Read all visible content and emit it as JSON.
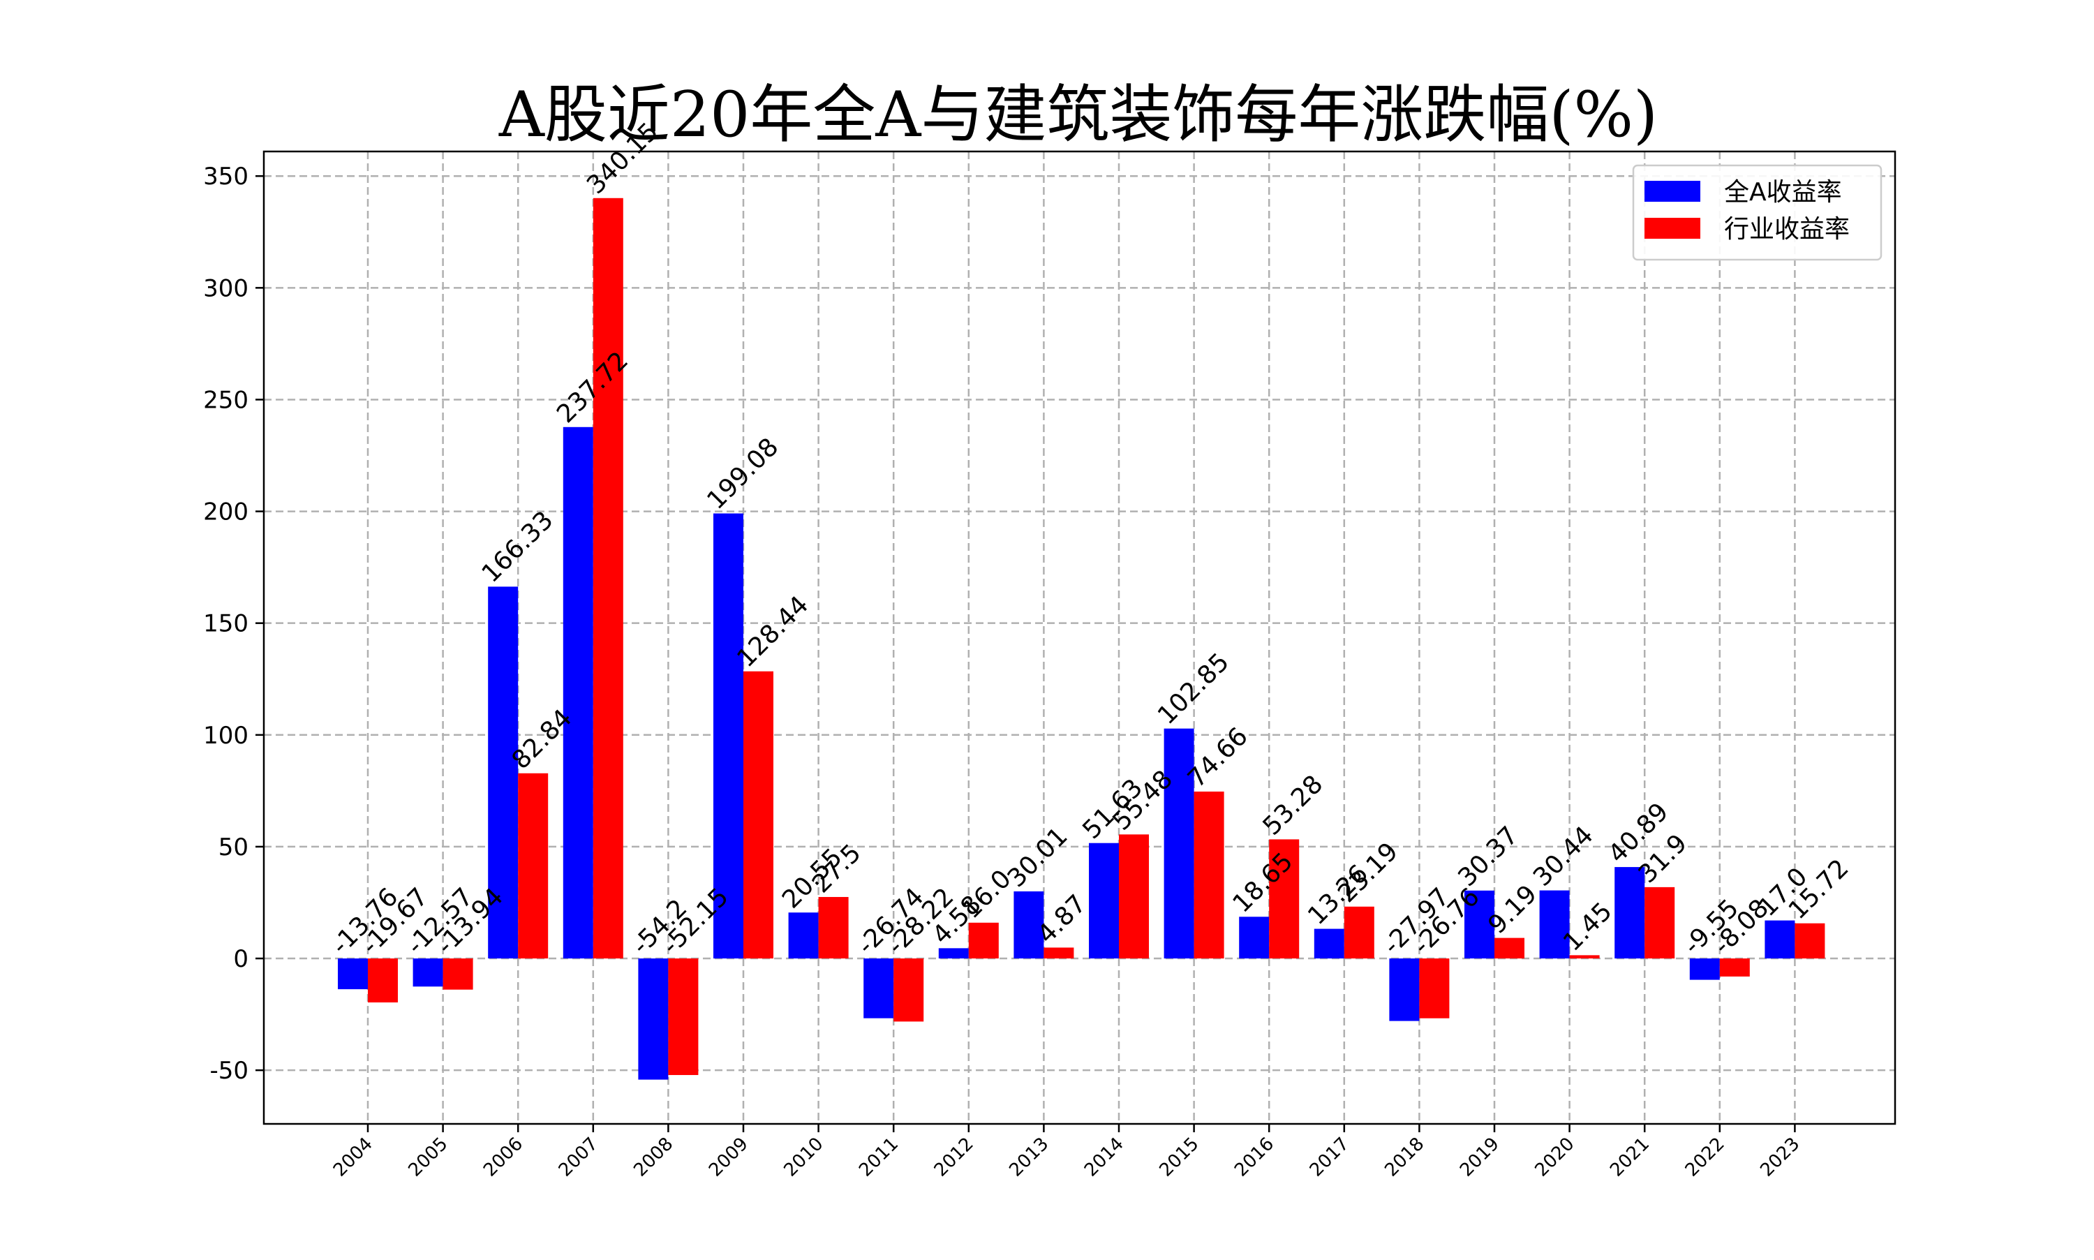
{
  "chart_data": {
    "type": "bar",
    "title": "A股近20年全A与建筑装饰每年涨跌幅(%)",
    "xlabel": "",
    "ylabel": "",
    "categories": [
      "2004",
      "2005",
      "2006",
      "2007",
      "2008",
      "2009",
      "2010",
      "2011",
      "2012",
      "2013",
      "2014",
      "2015",
      "2016",
      "2017",
      "2018",
      "2019",
      "2020",
      "2021",
      "2022",
      "2023"
    ],
    "series": [
      {
        "name": "全A收益率",
        "color": "#0000ff",
        "values": [
          -13.76,
          -12.57,
          166.33,
          237.72,
          -54.2,
          199.08,
          20.55,
          -26.74,
          4.58,
          30.01,
          51.63,
          102.85,
          18.65,
          13.26,
          -27.97,
          30.37,
          30.44,
          40.89,
          -9.55,
          17.0
        ],
        "labels": [
          "-13.76",
          "-12.57",
          "166.33",
          "237.72",
          "-54.2",
          "199.08",
          "20.55",
          "-26.74",
          "4.58",
          "30.01",
          "51.63",
          "102.85",
          "18.65",
          "13.26",
          "-27.97",
          "30.37",
          "30.44",
          "40.89",
          "-9.55",
          "17.0"
        ]
      },
      {
        "name": "行业收益率",
        "color": "#ff0000",
        "values": [
          -19.67,
          -13.94,
          82.84,
          340.15,
          -52.15,
          128.44,
          27.5,
          -28.22,
          16.0,
          4.87,
          55.48,
          74.66,
          53.28,
          23.19,
          -26.76,
          9.19,
          1.45,
          31.9,
          -8.08,
          15.72
        ],
        "labels": [
          "-19.67",
          "-13.94",
          "82.84",
          "340.15",
          "-52.15",
          "128.44",
          "27.5",
          "-28.22",
          "16.0",
          "4.87",
          "55.48",
          "74.66",
          "53.28",
          "23.19",
          "-26.76",
          "9.19",
          "1.45",
          "31.9",
          "-8.08",
          "15.72"
        ]
      }
    ],
    "ylim": [
      -74,
      361
    ],
    "yticks": [
      "-50",
      "0",
      "50",
      "100",
      "150",
      "200",
      "250",
      "300",
      "350"
    ],
    "grid": true,
    "legend_position": "top-right"
  }
}
